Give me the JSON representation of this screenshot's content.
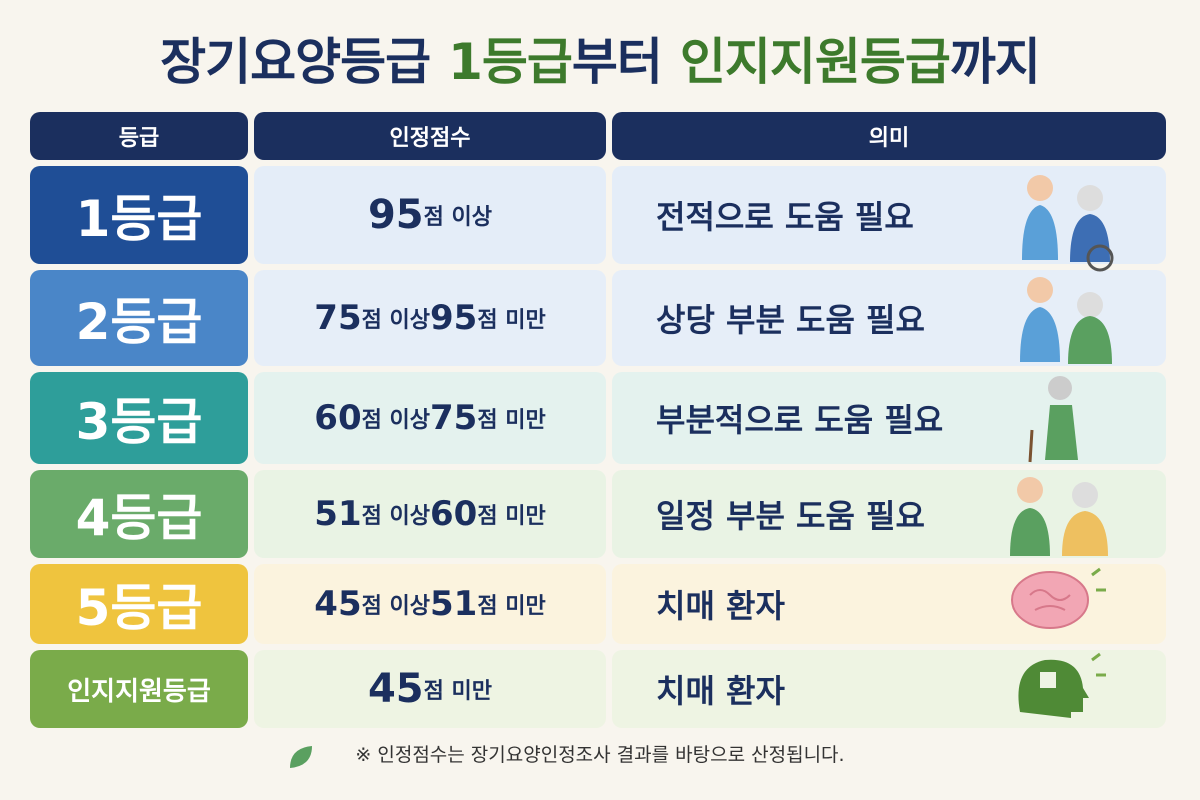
{
  "title": {
    "parts": [
      {
        "text": "장기요양등급",
        "color": "#1b2f5e"
      },
      {
        "text": "1등급",
        "color": "#3d7a2c"
      },
      {
        "text": "부터",
        "color": "#1b2f5e"
      },
      {
        "text": "인지지원등급",
        "color": "#3d7a2c"
      },
      {
        "text": "까지",
        "color": "#1b2f5e"
      }
    ]
  },
  "table": {
    "headers": [
      "등급",
      "인정점수",
      "의미"
    ],
    "rows": [
      {
        "grade": "1등급",
        "score": "95점 이상",
        "meaning": "전적으로 도움 필요",
        "color": "#1f4e96",
        "tint": "#e4edf8"
      },
      {
        "grade": "2등급",
        "score": "75점 이상 95점 미만",
        "meaning": "상당 부분 도움 필요",
        "color": "#4a86c8",
        "tint": "#e6eef8"
      },
      {
        "grade": "3등급",
        "score": "60점 이상 75점 미만",
        "meaning": "부분적으로 도움 필요",
        "color": "#2e9e9a",
        "tint": "#e4f2ee"
      },
      {
        "grade": "4등급",
        "score": "51점 이상 60점 미만",
        "meaning": "일정 부분 도움 필요",
        "color": "#6aab6a",
        "tint": "#e9f3e4"
      },
      {
        "grade": "5등급",
        "score": "45점 이상 51점 미만",
        "meaning": "치매 환자",
        "color": "#efc43e",
        "tint": "#fbf3de"
      },
      {
        "grade": "인지지원등급",
        "score": "45점 미만",
        "meaning": "치매 환자",
        "color": "#7aab4a",
        "tint": "#eef4e3"
      }
    ]
  },
  "footnote": "※ 인정점수는 장기요양인정조사 결과를 바탕으로 산정됩니다."
}
